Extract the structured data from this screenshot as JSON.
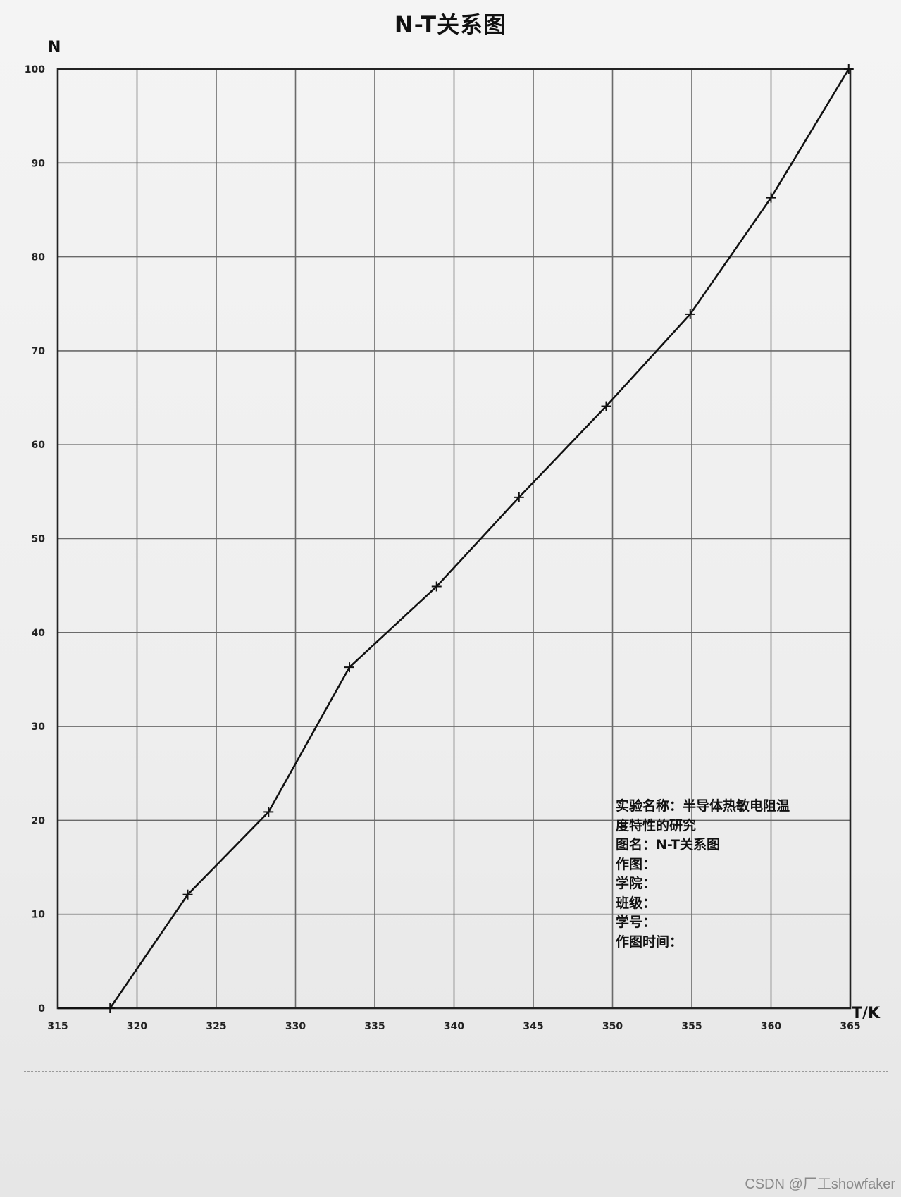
{
  "chart_data": {
    "type": "line",
    "title": "N-T关系图",
    "xlabel": "T/K",
    "ylabel": "N",
    "xlim": [
      315,
      365
    ],
    "ylim": [
      0,
      100
    ],
    "x_ticks": [
      "315",
      "320",
      "325",
      "330",
      "335",
      "340",
      "345",
      "350",
      "355",
      "360",
      "365"
    ],
    "y_ticks": [
      "0",
      "10",
      "20",
      "30",
      "40",
      "50",
      "60",
      "70",
      "80",
      "90",
      "100"
    ],
    "grid": true,
    "legend": "none",
    "line_color": "#111111",
    "marker": "plus",
    "series": [
      {
        "x": [
          318.3,
          323.2,
          328.3,
          333.4,
          338.9,
          344.1,
          349.6,
          354.9,
          360.0,
          364.9
        ],
        "y": [
          0,
          12.1,
          20.9,
          36.3,
          44.9,
          54.4,
          64.1,
          73.9,
          86.3,
          100
        ]
      }
    ]
  },
  "info_box": {
    "experiment": "实验名称：半导体热敏电阻温",
    "experiment_cont": "度特性的研究",
    "figure_name": "图名：N-T关系图",
    "author": "作图：",
    "college": "学院：",
    "class": "班级：",
    "student_id": "学号：",
    "date": "作图时间："
  },
  "watermark": "CSDN @厂工showfaker"
}
